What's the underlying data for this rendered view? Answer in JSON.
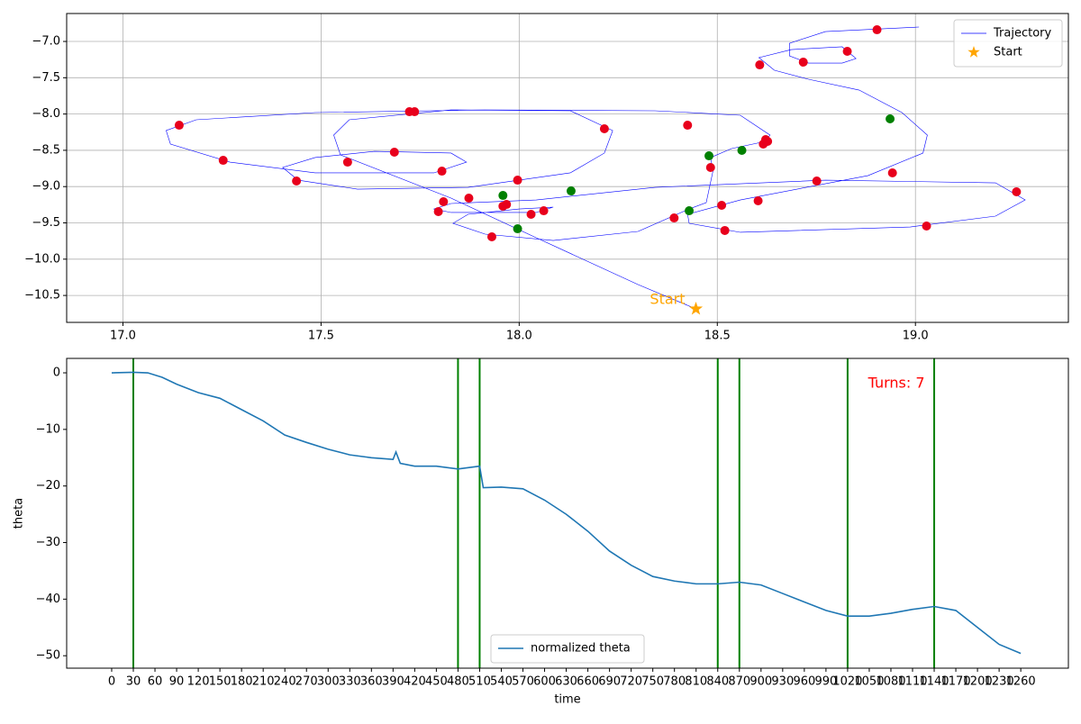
{
  "chart_data": [
    {
      "type": "scatter",
      "xlim": [
        16.858,
        19.386
      ],
      "ylim": [
        -10.871,
        -6.615
      ],
      "xticks": [
        {
          "value": 17,
          "label": "17.0"
        },
        17.5,
        {
          "value": 18,
          "label": "18.0"
        },
        18.5,
        {
          "value": 19,
          "label": "19.0"
        }
      ],
      "yticks": [
        {
          "value": -7,
          "label": "−7.0"
        },
        {
          "value": -7.5,
          "label": "−7.5"
        },
        {
          "value": -8,
          "label": "−8.0"
        },
        {
          "value": -8.5,
          "label": "−8.5"
        },
        {
          "value": -9,
          "label": "−9.0"
        },
        {
          "value": -9.5,
          "label": "−9.5"
        },
        {
          "value": -10,
          "label": "−10.0"
        },
        {
          "value": -10.5,
          "label": "−10.5"
        }
      ],
      "grid": true,
      "legend": "upper right",
      "start_label": "Start",
      "series": [
        {
          "name": "Trajectory",
          "color": "#0000ff",
          "mode": "line",
          "x": [
            18.446,
            18.3,
            18.043,
            17.828,
            17.549,
            17.532,
            17.571,
            17.828,
            18.129,
            18.236,
            18.215,
            18.129,
            17.871,
            17.592,
            17.442,
            17.403,
            17.485,
            17.635,
            17.828,
            17.867,
            17.785,
            17.485,
            17.27,
            17.12,
            17.109,
            17.185,
            17.485,
            17.914,
            18.343,
            18.558,
            18.633,
            18.622,
            18.536,
            18.483,
            18.489,
            18.472,
            18.429,
            18.3,
            18.086,
            17.914,
            17.833,
            17.871,
            18.0,
            18.086,
            18.043,
            17.936,
            17.828,
            17.785,
            17.828,
            18.043,
            18.343,
            18.773,
            19.202,
            19.277,
            19.202,
            18.987,
            18.558,
            18.429,
            18.425,
            18.558,
            18.88,
            19.019,
            19.03,
            18.966,
            18.858,
            18.73,
            18.644,
            18.605,
            18.687,
            18.815,
            18.85,
            18.815,
            18.73,
            18.682,
            18.682,
            18.773,
            19.009
          ],
          "y": [
            -10.685,
            -10.35,
            -9.705,
            -9.159,
            -8.563,
            -8.29,
            -8.079,
            -7.943,
            -7.955,
            -8.228,
            -8.538,
            -8.811,
            -9.01,
            -9.035,
            -8.911,
            -8.737,
            -8.6,
            -8.514,
            -8.538,
            -8.663,
            -8.811,
            -8.811,
            -8.663,
            -8.414,
            -8.228,
            -8.079,
            -7.98,
            -7.943,
            -7.955,
            -8.017,
            -8.29,
            -8.377,
            -8.476,
            -8.6,
            -8.787,
            -9.221,
            -9.308,
            -9.618,
            -9.742,
            -9.655,
            -9.506,
            -9.382,
            -9.308,
            -9.283,
            -9.357,
            -9.357,
            -9.357,
            -9.308,
            -9.233,
            -9.184,
            -9.01,
            -8.911,
            -8.948,
            -9.184,
            -9.407,
            -9.556,
            -9.63,
            -9.506,
            -9.382,
            -9.184,
            -8.849,
            -8.538,
            -8.29,
            -7.98,
            -7.67,
            -7.521,
            -7.397,
            -7.223,
            -7.112,
            -7.074,
            -7.236,
            -7.298,
            -7.298,
            -7.199,
            -7.025,
            -6.864,
            -6.801
          ]
        },
        {
          "color": "#e8001c",
          "mode": "points",
          "x": [
            17.142,
            17.253,
            17.438,
            17.567,
            17.685,
            17.723,
            17.736,
            17.805,
            17.809,
            17.796,
            17.873,
            17.959,
            17.968,
            17.931,
            17.996,
            18.03,
            18.062,
            18.215,
            18.391,
            18.425,
            18.483,
            18.511,
            18.519,
            18.603,
            18.607,
            18.616,
            18.622,
            18.627,
            18.717,
            18.751,
            18.828,
            18.903,
            18.942,
            19.028,
            19.255
          ],
          "y": [
            -8.154,
            -8.638,
            -8.923,
            -8.663,
            -8.526,
            -7.968,
            -7.968,
            -8.787,
            -9.208,
            -9.345,
            -9.159,
            -9.27,
            -9.246,
            -9.692,
            -8.911,
            -9.382,
            -9.333,
            -8.203,
            -9.432,
            -8.154,
            -8.737,
            -9.258,
            -9.605,
            -9.196,
            -7.323,
            -8.414,
            -8.352,
            -8.377,
            -7.285,
            -8.923,
            -7.136,
            -6.839,
            -8.811,
            -9.543,
            -9.072
          ]
        },
        {
          "color": "#008000",
          "mode": "points",
          "x": [
            17.959,
            17.996,
            18.131,
            18.429,
            18.479,
            18.562,
            18.936
          ],
          "y": [
            -9.122,
            -9.581,
            -9.06,
            -9.333,
            -8.576,
            -8.501,
            -8.067
          ]
        },
        {
          "name": "Start",
          "color": "#ffa500",
          "mode": "star",
          "x": [
            18.446
          ],
          "y": [
            -10.685
          ]
        }
      ]
    },
    {
      "type": "line",
      "xlabel": "time",
      "ylabel": "theta",
      "xlim": [
        -62.4,
        1326
      ],
      "ylim": [
        -52.2,
        2.55
      ],
      "xticks": [
        0,
        30,
        60,
        90,
        120,
        150,
        180,
        210,
        240,
        270,
        300,
        330,
        360,
        390,
        420,
        450,
        480,
        510,
        540,
        570,
        600,
        630,
        660,
        690,
        720,
        750,
        780,
        810,
        840,
        870,
        900,
        930,
        960,
        990,
        1020,
        1050,
        1080,
        1110,
        1140,
        1170,
        1200,
        1230,
        1260
      ],
      "yticks": [
        0,
        {
          "value": -10,
          "label": "−10"
        },
        {
          "value": -20,
          "label": "−20"
        },
        {
          "value": -30,
          "label": "−30"
        },
        {
          "value": -40,
          "label": "−40"
        },
        {
          "value": -50,
          "label": "−50"
        }
      ],
      "grid": false,
      "legend": "lower center",
      "annotation": "Turns: 7",
      "annotation_color": "#ff0000",
      "vlines": [
        30,
        480,
        510,
        840,
        870,
        1020,
        1140
      ],
      "vline_color": "#008000",
      "x": [
        0,
        30,
        50,
        70,
        90,
        120,
        150,
        180,
        210,
        240,
        270,
        300,
        330,
        360,
        390,
        394,
        400,
        420,
        450,
        480,
        510,
        515,
        540,
        570,
        600,
        630,
        660,
        690,
        720,
        750,
        780,
        810,
        840,
        870,
        900,
        930,
        960,
        990,
        1020,
        1050,
        1080,
        1110,
        1140,
        1170,
        1200,
        1230,
        1260
      ],
      "series": [
        {
          "name": "normalized theta",
          "color": "#1f77b4",
          "values": [
            0,
            0.1,
            0,
            -0.8,
            -2,
            -3.5,
            -4.5,
            -6.5,
            -8.5,
            -11,
            -12.3,
            -13.5,
            -14.5,
            -15,
            -15.3,
            -14,
            -16,
            -16.5,
            -16.5,
            -17,
            -16.5,
            -20.3,
            -20.2,
            -20.5,
            -22.5,
            -25,
            -28,
            -31.5,
            -34,
            -36,
            -36.8,
            -37.3,
            -37.3,
            -37,
            -37.5,
            -39,
            -40.5,
            -42,
            -43,
            -43,
            -42.5,
            -41.8,
            -41.3,
            -42,
            -45,
            -48,
            -49.6
          ]
        }
      ]
    }
  ]
}
